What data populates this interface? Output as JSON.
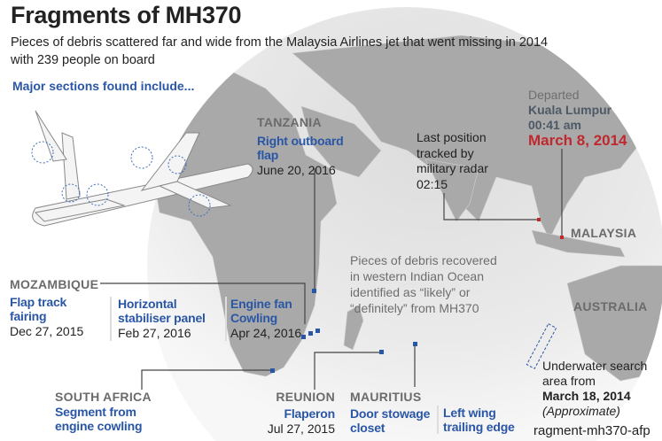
{
  "header": {
    "title": "Fragments of MH370",
    "subtitle_line1": "Pieces of debris scattered far and wide from the Malaysia Airlines jet that went missing in 2014",
    "subtitle_line2": "with 239 people on board",
    "major_sections": "Major sections found include..."
  },
  "colors": {
    "accent_blue": "#2a56a6",
    "accent_red": "#c0282d",
    "land": "#a9a9a9",
    "globe": "#ececec"
  },
  "departure": {
    "label": "Departed",
    "city": "Kuala Lumpur",
    "time": "00:41 am",
    "date": "March 8, 2014"
  },
  "radar": {
    "line1": "Last position",
    "line2": "tracked by",
    "line3": "military radar",
    "time": "02:15"
  },
  "regions": {
    "malaysia": "MALAYSIA",
    "australia": "AUSTRALIA"
  },
  "debris_note": {
    "line1": "Pieces of debris recovered",
    "line2": "in western Indian Ocean",
    "line3": "identified as “likely” or",
    "line4": "“definitely” from MH370"
  },
  "search": {
    "line1": "Underwater search",
    "line2": "area from",
    "date": "March 18, 2014",
    "note": "(Approximate)"
  },
  "finds": {
    "tanzania": {
      "country": "TANZANIA",
      "item1": "Right outboard",
      "item2": "flap",
      "date": "June 20, 2016"
    },
    "mozambique": {
      "country": "MOZAMBIQUE"
    },
    "flap_track": {
      "item1": "Flap track",
      "item2": "fairing",
      "date": "Dec 27, 2015"
    },
    "stabiliser": {
      "item1": "Horizontal",
      "item2": "stabiliser panel",
      "date": "Feb 27, 2016"
    },
    "engine_fan": {
      "item1": "Engine fan",
      "item2": "Cowling",
      "date": "Apr 24, 2016"
    },
    "south_africa": {
      "country": "SOUTH AFRICA",
      "item1": "Segment from",
      "item2": "engine cowling"
    },
    "reunion": {
      "country": "REUNION",
      "item1": "Flaperon",
      "date": "Jul 27, 2015"
    },
    "mauritius": {
      "country": "MAURITIUS",
      "item1": "Door stowage",
      "item2": "closet"
    },
    "left_wing": {
      "item1": "Left wing",
      "item2": "trailing edge"
    }
  },
  "watermark": "ragment-mh370-afp"
}
